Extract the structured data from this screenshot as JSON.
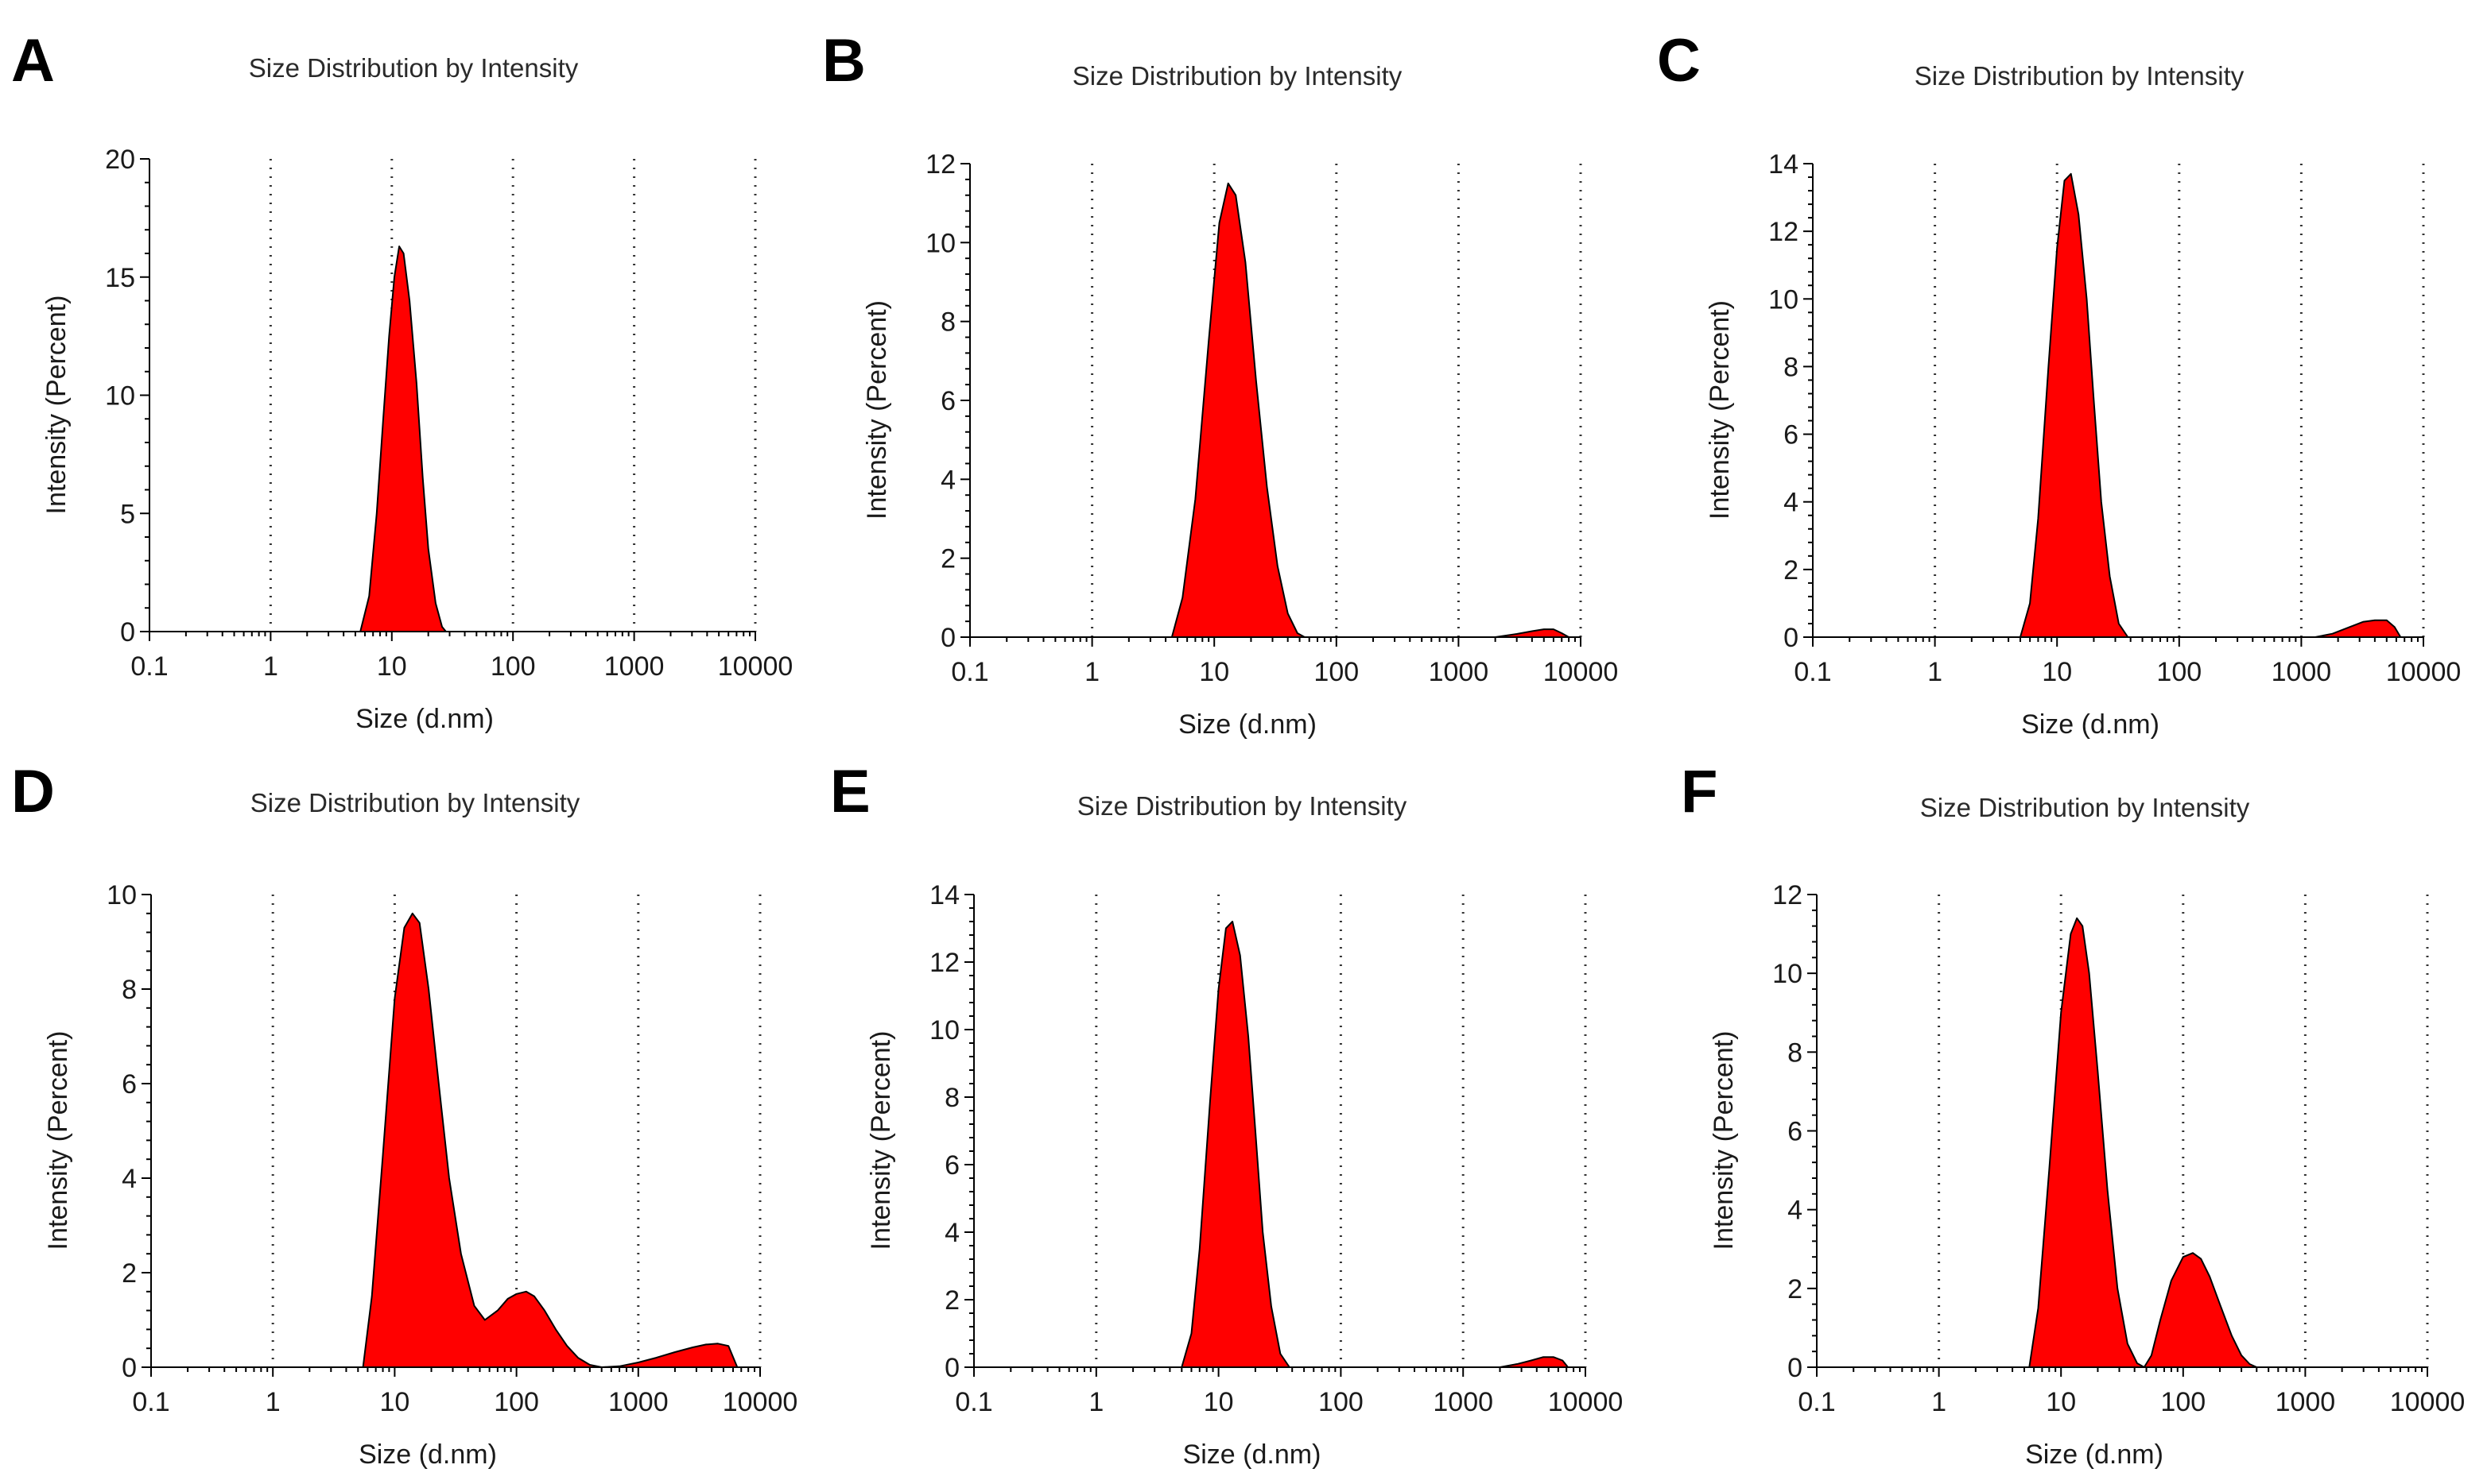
{
  "colors": {
    "fill": "#ff0000",
    "outline": "#000000",
    "grid": "#333333"
  },
  "chart_data": [
    {
      "type": "area",
      "panel": "A",
      "title": "Size Distribution by Intensity",
      "xlabel": "Size (d.nm)",
      "ylabel": "Intensity (Percent)",
      "xscale": "log",
      "xlim": [
        0.1,
        10000
      ],
      "ylim": [
        0,
        20
      ],
      "xticks": [
        "0.1",
        "1",
        "10",
        "100",
        "1000",
        "10000"
      ],
      "yticks": [
        "0",
        "5",
        "10",
        "15",
        "20"
      ],
      "grid": "vertical dotted lines at decades",
      "series": [
        {
          "x": [
            5.5,
            6.5,
            7.5,
            8.5,
            9.5,
            10.5,
            11.5,
            12.5,
            14,
            16,
            18,
            20,
            23,
            26,
            28
          ],
          "values": [
            0,
            1.5,
            5,
            9,
            12.5,
            15,
            16.3,
            16,
            14,
            10.5,
            6.5,
            3.5,
            1.2,
            0.2,
            0
          ]
        }
      ]
    },
    {
      "type": "area",
      "panel": "B",
      "title": "Size Distribution by Intensity",
      "xlabel": "Size (d.nm)",
      "ylabel": "Intensity (Percent)",
      "xscale": "log",
      "xlim": [
        0.1,
        10000
      ],
      "ylim": [
        0,
        12
      ],
      "xticks": [
        "0.1",
        "1",
        "10",
        "100",
        "1000",
        "10000"
      ],
      "yticks": [
        "0",
        "2",
        "4",
        "6",
        "8",
        "10",
        "12"
      ],
      "grid": "vertical dotted lines at decades",
      "series": [
        {
          "x": [
            4.5,
            5.5,
            7,
            9,
            11,
            13,
            15,
            18,
            22,
            27,
            33,
            40,
            48,
            55
          ],
          "values": [
            0,
            1,
            3.5,
            7.5,
            10.5,
            11.5,
            11.2,
            9.5,
            6.5,
            3.8,
            1.8,
            0.6,
            0.1,
            0
          ]
        },
        {
          "x": [
            2000,
            3000,
            4000,
            5000,
            6000,
            7000,
            8000
          ],
          "values": [
            0,
            0.08,
            0.15,
            0.2,
            0.2,
            0.1,
            0
          ]
        }
      ]
    },
    {
      "type": "area",
      "panel": "C",
      "title": "Size Distribution by Intensity",
      "xlabel": "Size (d.nm)",
      "ylabel": "Intensity (Percent)",
      "xscale": "log",
      "xlim": [
        0.1,
        10000
      ],
      "ylim": [
        0,
        14
      ],
      "xticks": [
        "0.1",
        "1",
        "10",
        "100",
        "1000",
        "10000"
      ],
      "yticks": [
        "0",
        "2",
        "4",
        "6",
        "8",
        "10",
        "12",
        "14"
      ],
      "grid": "vertical dotted lines at decades",
      "series": [
        {
          "x": [
            5,
            6,
            7,
            8.5,
            10,
            11.5,
            13,
            15,
            17.5,
            20,
            23,
            27,
            32,
            38
          ],
          "values": [
            0,
            1,
            3.5,
            8,
            11.5,
            13.5,
            13.7,
            12.5,
            10,
            7,
            4,
            1.8,
            0.4,
            0
          ]
        },
        {
          "x": [
            1300,
            1800,
            2500,
            3200,
            4000,
            5000,
            5800,
            6500
          ],
          "values": [
            0,
            0.1,
            0.3,
            0.45,
            0.5,
            0.5,
            0.3,
            0
          ]
        }
      ]
    },
    {
      "type": "area",
      "panel": "D",
      "title": "Size Distribution by Intensity",
      "xlabel": "Size (d.nm)",
      "ylabel": "Intensity (Percent)",
      "xscale": "log",
      "xlim": [
        0.1,
        10000
      ],
      "ylim": [
        0,
        10
      ],
      "xticks": [
        "0.1",
        "1",
        "10",
        "100",
        "1000",
        "10000"
      ],
      "yticks": [
        "0",
        "2",
        "4",
        "6",
        "8",
        "10"
      ],
      "grid": "vertical dotted lines at decades",
      "series": [
        {
          "x": [
            5.5,
            6.5,
            8,
            10,
            12,
            14,
            16,
            19,
            23,
            28,
            35,
            45,
            55,
            70,
            85,
            100,
            120,
            140,
            170,
            210,
            260,
            320,
            400,
            500,
            700,
            1000,
            1400,
            2000,
            2800,
            3600,
            4500,
            5500,
            6500
          ],
          "values": [
            0,
            1.5,
            4.5,
            7.8,
            9.3,
            9.6,
            9.4,
            8,
            6,
            4,
            2.4,
            1.3,
            1,
            1.2,
            1.45,
            1.55,
            1.6,
            1.5,
            1.2,
            0.8,
            0.45,
            0.2,
            0.05,
            0,
            0.02,
            0.1,
            0.2,
            0.32,
            0.42,
            0.48,
            0.5,
            0.45,
            0
          ]
        }
      ]
    },
    {
      "type": "area",
      "panel": "E",
      "title": "Size Distribution by Intensity",
      "xlabel": "Size (d.nm)",
      "ylabel": "Intensity (Percent)",
      "xscale": "log",
      "xlim": [
        0.1,
        10000
      ],
      "ylim": [
        0,
        14
      ],
      "xticks": [
        "0.1",
        "1",
        "10",
        "100",
        "1000",
        "10000"
      ],
      "yticks": [
        "0",
        "2",
        "4",
        "6",
        "8",
        "10",
        "12",
        "14"
      ],
      "grid": "vertical dotted lines at decades",
      "series": [
        {
          "x": [
            5,
            6,
            7,
            8.5,
            10,
            11.5,
            13,
            15,
            17.5,
            20,
            23,
            27,
            32,
            38
          ],
          "values": [
            0,
            1,
            3.5,
            7.8,
            11.2,
            13,
            13.2,
            12.2,
            9.8,
            7,
            4,
            1.8,
            0.4,
            0
          ]
        },
        {
          "x": [
            2000,
            2800,
            3600,
            4500,
            5500,
            6500,
            7200
          ],
          "values": [
            0,
            0.1,
            0.2,
            0.3,
            0.3,
            0.2,
            0
          ]
        }
      ]
    },
    {
      "type": "area",
      "panel": "F",
      "title": "Size Distribution by Intensity",
      "xlabel": "Size (d.nm)",
      "ylabel": "Intensity (Percent)",
      "xscale": "log",
      "xlim": [
        0.1,
        10000
      ],
      "ylim": [
        0,
        12
      ],
      "xticks": [
        "0.1",
        "1",
        "10",
        "100",
        "1000",
        "10000"
      ],
      "yticks": [
        "0",
        "2",
        "4",
        "6",
        "8",
        "10",
        "12"
      ],
      "grid": "vertical dotted lines at decades",
      "series": [
        {
          "x": [
            5.5,
            6.5,
            8,
            10,
            12,
            13.5,
            15,
            17,
            20,
            24,
            29,
            35,
            42,
            48,
            55,
            65,
            80,
            100,
            120,
            140,
            165,
            200,
            250,
            300,
            350,
            400
          ],
          "values": [
            0,
            1.5,
            5,
            9,
            11,
            11.4,
            11.2,
            10,
            7.5,
            4.5,
            2,
            0.6,
            0.1,
            0,
            0.3,
            1.2,
            2.2,
            2.8,
            2.9,
            2.75,
            2.3,
            1.6,
            0.8,
            0.3,
            0.08,
            0
          ]
        }
      ]
    }
  ]
}
